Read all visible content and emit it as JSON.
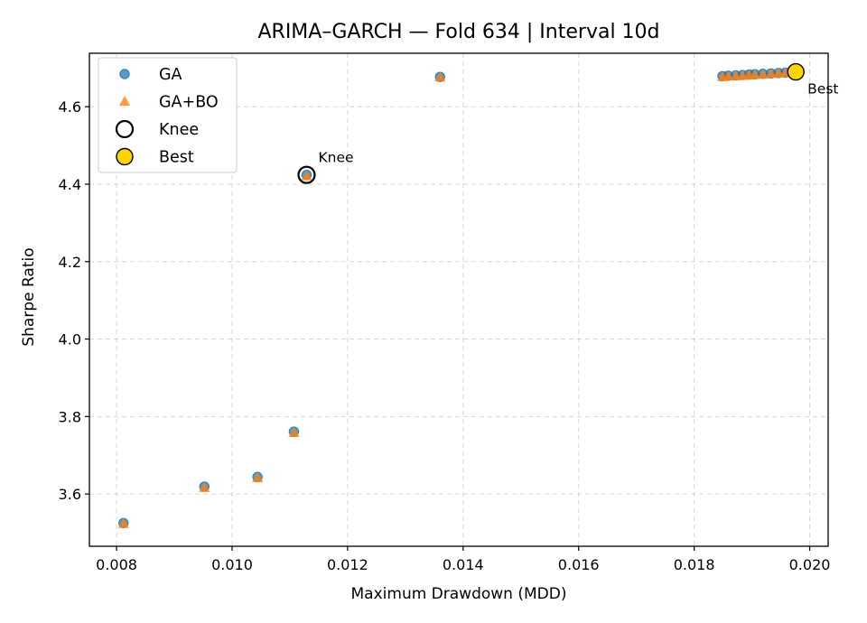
{
  "chart_data": {
    "type": "scatter",
    "title": "ARIMA–GARCH — Fold 634 | Interval 10d",
    "xlabel": "Maximum Drawdown (MDD)",
    "ylabel": "Sharpe Ratio",
    "xlim": [
      0.00753,
      0.02032
    ],
    "ylim": [
      3.465,
      4.738
    ],
    "xticks": [
      0.008,
      0.01,
      0.012,
      0.014,
      0.016,
      0.018,
      0.02
    ],
    "xtick_labels": [
      "0.008",
      "0.010",
      "0.012",
      "0.014",
      "0.016",
      "0.018",
      "0.020"
    ],
    "yticks": [
      3.6,
      3.8,
      4.0,
      4.2,
      4.4,
      4.6
    ],
    "ytick_labels": [
      "3.6",
      "3.8",
      "4.0",
      "4.2",
      "4.4",
      "4.6"
    ],
    "grid": true,
    "legend_position": "top-left",
    "series": [
      {
        "name": "GA",
        "marker": "circle",
        "color": "#1f77b4",
        "points": [
          [
            0.00812,
            3.525
          ],
          [
            0.00952,
            3.619
          ],
          [
            0.01044,
            3.644
          ],
          [
            0.01107,
            3.761
          ],
          [
            0.01129,
            4.424
          ],
          [
            0.0136,
            4.677
          ],
          [
            0.01849,
            4.679
          ],
          [
            0.01859,
            4.68
          ],
          [
            0.01872,
            4.681
          ],
          [
            0.01884,
            4.682
          ],
          [
            0.01895,
            4.683
          ],
          [
            0.01905,
            4.684
          ],
          [
            0.01919,
            4.685
          ],
          [
            0.01933,
            4.686
          ],
          [
            0.01946,
            4.687
          ],
          [
            0.01958,
            4.688
          ],
          [
            0.01971,
            4.689
          ]
        ]
      },
      {
        "name": "GA+BO",
        "marker": "triangle",
        "color": "#ff7f0e",
        "points": [
          [
            0.00812,
            3.523
          ],
          [
            0.00952,
            3.616
          ],
          [
            0.01044,
            3.641
          ],
          [
            0.01107,
            3.758
          ],
          [
            0.01129,
            4.421
          ],
          [
            0.0136,
            4.676
          ],
          [
            0.01849,
            4.677
          ],
          [
            0.01859,
            4.678
          ],
          [
            0.01872,
            4.679
          ],
          [
            0.01884,
            4.68
          ],
          [
            0.01895,
            4.681
          ],
          [
            0.01905,
            4.682
          ],
          [
            0.01919,
            4.683
          ],
          [
            0.01933,
            4.685
          ],
          [
            0.01946,
            4.686
          ],
          [
            0.01958,
            4.687
          ],
          [
            0.01971,
            4.688
          ]
        ]
      }
    ],
    "knee": {
      "name": "Knee",
      "x": 0.01129,
      "y": 4.424,
      "label": "Knee"
    },
    "best": {
      "name": "Best",
      "x": 0.01976,
      "y": 4.69,
      "label": "Best",
      "color": "#ffd400"
    }
  }
}
